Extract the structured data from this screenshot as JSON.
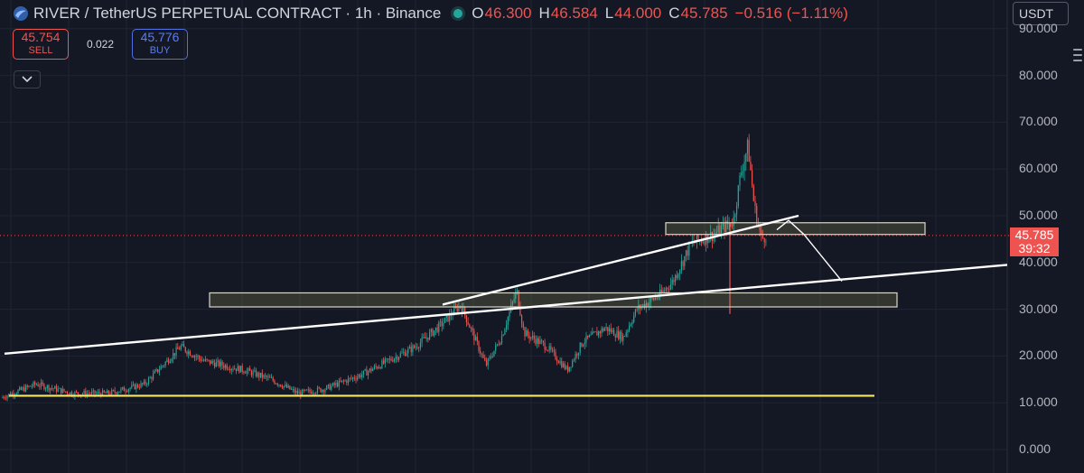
{
  "header": {
    "symbol_title": "RIVER / TetherUS PERPETUAL CONTRACT · 1h · Binance",
    "o_label": "O",
    "o_value": "46.300",
    "h_label": "H",
    "h_value": "46.584",
    "l_label": "L",
    "l_value": "44.000",
    "c_label": "C",
    "c_value": "45.785",
    "change": "−0.516 (−1.11%)"
  },
  "trade": {
    "sell_price": "45.754",
    "sell_label": "SELL",
    "spread": "0.022",
    "buy_price": "45.776",
    "buy_label": "BUY"
  },
  "currency_select": "USDT",
  "current_price": {
    "value": "45.785",
    "countdown": "39:32"
  },
  "colors": {
    "background": "#141824",
    "up": "#26a69a",
    "down": "#ef5350",
    "support": "#f5e663",
    "lines": "#ffffff"
  },
  "icons": [
    "river-logo-icon",
    "market-status-icon",
    "chevron-down-icon",
    "menu-icon"
  ],
  "chart_data": {
    "type": "candlestick",
    "y_ticks": [
      "90.000",
      "80.000",
      "70.000",
      "60.000",
      "50.000",
      "40.000",
      "30.000",
      "20.000",
      "10.000",
      "0.000"
    ],
    "ylim": [
      0,
      92
    ],
    "x_domain": [
      0,
      1115
    ],
    "price_path": [
      [
        0,
        11
      ],
      [
        40,
        14
      ],
      [
        80,
        12
      ],
      [
        120,
        12
      ],
      [
        160,
        14
      ],
      [
        185,
        19
      ],
      [
        200,
        22
      ],
      [
        225,
        19
      ],
      [
        270,
        17
      ],
      [
        300,
        15
      ],
      [
        330,
        12
      ],
      [
        360,
        13
      ],
      [
        400,
        16
      ],
      [
        430,
        19
      ],
      [
        460,
        22
      ],
      [
        490,
        27
      ],
      [
        510,
        31
      ],
      [
        525,
        24
      ],
      [
        538,
        18
      ],
      [
        555,
        24
      ],
      [
        572,
        34
      ],
      [
        580,
        25
      ],
      [
        605,
        22
      ],
      [
        628,
        17
      ],
      [
        645,
        23
      ],
      [
        670,
        26
      ],
      [
        690,
        24
      ],
      [
        705,
        30
      ],
      [
        730,
        33
      ],
      [
        745,
        36
      ],
      [
        765,
        44
      ],
      [
        790,
        46
      ],
      [
        812,
        49
      ],
      [
        820,
        59
      ],
      [
        828,
        65
      ],
      [
        835,
        52
      ],
      [
        843,
        45
      ],
      [
        848,
        45.8
      ]
    ],
    "spike_down": {
      "x": 808,
      "low": 29
    },
    "annotations": {
      "zones": [
        {
          "x1": 232,
          "x2": 993,
          "y_low": 30.5,
          "y_high": 33.5
        },
        {
          "x1": 737,
          "x2": 1024,
          "y_low": 46,
          "y_high": 48.5
        }
      ],
      "trendlines": [
        {
          "x1": 5,
          "x2": 1115,
          "y1": 20.5,
          "y2": 39.5
        },
        {
          "x1": 490,
          "x2": 884,
          "y1": 31,
          "y2": 50
        }
      ],
      "support_line": {
        "x1": 10,
        "x2": 968,
        "y": 11.5
      },
      "projection": [
        [
          860,
          47
        ],
        [
          873,
          49
        ],
        [
          890,
          46
        ],
        [
          932,
          36
        ]
      ]
    }
  }
}
